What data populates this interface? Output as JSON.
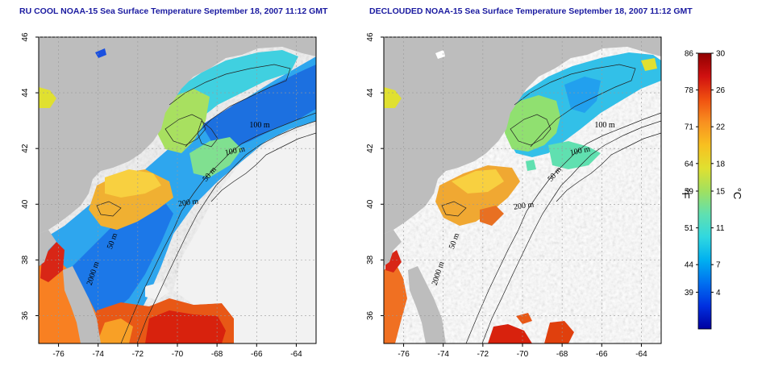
{
  "panels": [
    {
      "id": "left",
      "title": "RU COOL NOAA-15 Sea Surface Temperature September 18, 2007 11:12 GMT",
      "x_ticks": [
        "-76",
        "-74",
        "-72",
        "-70",
        "-68",
        "-66",
        "-64"
      ],
      "y_ticks": [
        "36",
        "38",
        "40",
        "42",
        "44",
        "46"
      ],
      "contour_labels": [
        "100 m",
        "100 m",
        "50 m",
        "200 m",
        "50 m",
        "2000 m"
      ]
    },
    {
      "id": "right",
      "title": "DECLOUDED NOAA-15 Sea Surface Temperature September 18, 2007 11:12 GMT",
      "x_ticks": [
        "-76",
        "-74",
        "-72",
        "-70",
        "-68",
        "-66",
        "-64"
      ],
      "y_ticks": [
        "36",
        "38",
        "40",
        "42",
        "44",
        "46"
      ],
      "contour_labels": [
        "100 m",
        "100 m",
        "50 m",
        "200 m",
        "50 m",
        "2000 m"
      ]
    }
  ],
  "colorbar": {
    "fahrenheit_label": "°F",
    "celsius_label": "°C",
    "fahrenheit_ticks": [
      "86",
      "78",
      "71",
      "64",
      "59",
      "51",
      "44",
      "39"
    ],
    "celsius_ticks": [
      "30",
      "26",
      "22",
      "18",
      "15",
      "11",
      "7",
      "4"
    ],
    "celsius_min": 0,
    "celsius_max": 30,
    "colors": [
      "#0000a0",
      "#0030e0",
      "#0070f0",
      "#00b0f0",
      "#30d8e0",
      "#60e0b0",
      "#a0e060",
      "#e0e030",
      "#f8c020",
      "#f89020",
      "#f05010",
      "#d01010",
      "#900000"
    ]
  },
  "colors": {
    "land": "#bdbdbd",
    "no_data": "#ffffff",
    "grid": "#999999",
    "title": "#1a1aa0"
  }
}
